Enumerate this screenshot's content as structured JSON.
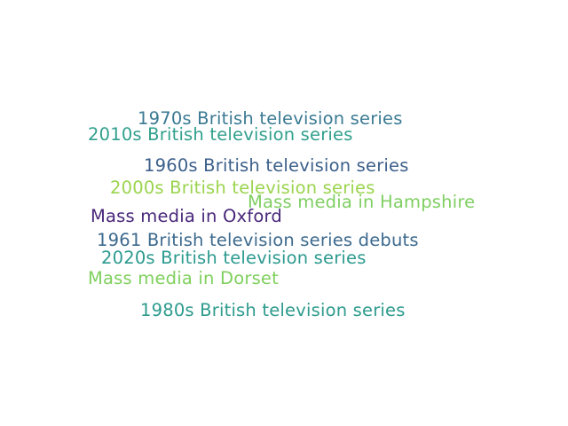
{
  "words": [
    {
      "text": "1970s British television series",
      "color": "#3b7a93"
    },
    {
      "text": "2010s British television series",
      "color": "#31a08d"
    },
    {
      "text": "1960s British television series",
      "color": "#3b5f8a"
    },
    {
      "text": "2000s British television series",
      "color": "#9bd44e"
    },
    {
      "text": "Mass media in Hampshire",
      "color": "#7fcf62"
    },
    {
      "text": "Mass media in Oxford",
      "color": "#48277a"
    },
    {
      "text": "1961 British television series debuts",
      "color": "#3d6a8e"
    },
    {
      "text": "2020s British television series",
      "color": "#2c9a8f"
    },
    {
      "text": "Mass media in Dorset",
      "color": "#7fd05d"
    },
    {
      "text": "1980s British television series",
      "color": "#2d9b8d"
    }
  ]
}
